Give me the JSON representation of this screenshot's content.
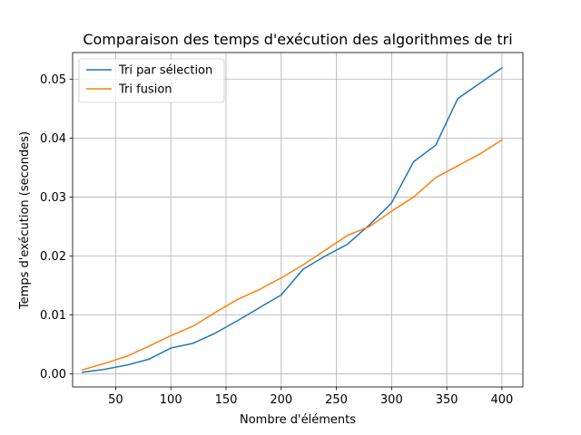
{
  "chart_data": {
    "type": "line",
    "title": "Comparaison des temps d'exécution des algorithmes de tri",
    "xlabel": "Nombre d'éléments",
    "ylabel": "Temps d'exécution (secondes)",
    "xlim": [
      11,
      419
    ],
    "ylim": [
      -0.0022,
      0.0545
    ],
    "xticks": [
      50,
      100,
      150,
      200,
      250,
      300,
      350,
      400
    ],
    "yticks": [
      0.0,
      0.01,
      0.02,
      0.03,
      0.04,
      0.05
    ],
    "ytick_labels": [
      "0.00",
      "0.01",
      "0.02",
      "0.03",
      "0.04",
      "0.05"
    ],
    "grid": true,
    "legend_position": "top-left",
    "x": [
      20,
      40,
      60,
      80,
      100,
      120,
      140,
      160,
      180,
      200,
      220,
      240,
      260,
      280,
      300,
      320,
      340,
      360,
      380,
      400
    ],
    "series": [
      {
        "name": "Tri par sélection",
        "color": "#1f77b4",
        "values": [
          0.0003,
          0.0008,
          0.0015,
          0.0025,
          0.0044,
          0.0052,
          0.0069,
          0.009,
          0.0112,
          0.0134,
          0.0178,
          0.02,
          0.022,
          0.0253,
          0.029,
          0.036,
          0.0388,
          0.0467,
          0.0493,
          0.0519
        ]
      },
      {
        "name": "Tri fusion",
        "color": "#ff7f0e",
        "values": [
          0.0007,
          0.0018,
          0.003,
          0.0047,
          0.0065,
          0.0081,
          0.0104,
          0.0126,
          0.0143,
          0.0163,
          0.0185,
          0.021,
          0.0235,
          0.025,
          0.0276,
          0.03,
          0.0333,
          0.0353,
          0.0373,
          0.0397
        ]
      }
    ]
  }
}
